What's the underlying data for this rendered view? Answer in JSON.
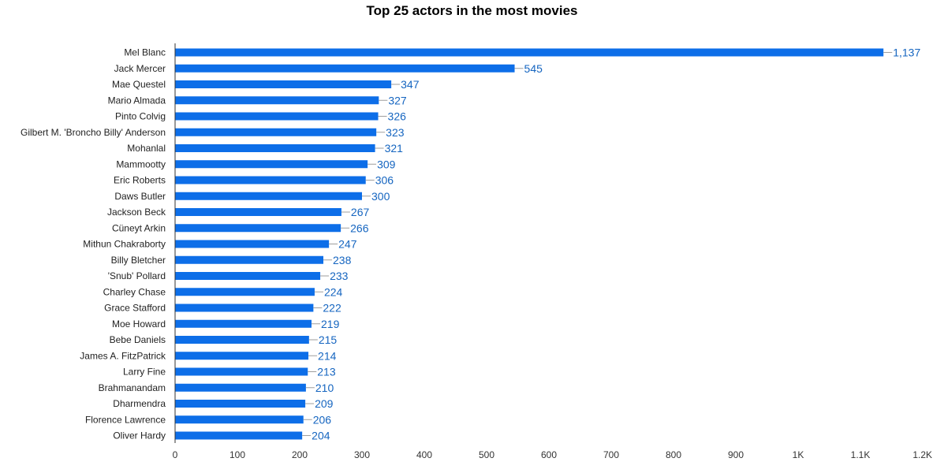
{
  "chart_data": {
    "type": "bar",
    "orientation": "horizontal",
    "title": "Top 25 actors in the most movies",
    "xlabel": "",
    "ylabel": "",
    "xlim": [
      0,
      1200
    ],
    "grid": false,
    "bar_color": "#0d6ee8",
    "label_color": "#1565c0",
    "categories": [
      "Mel Blanc",
      "Jack Mercer",
      "Mae Questel",
      "Mario Almada",
      "Pinto Colvig",
      "Gilbert M. 'Broncho Billy' Anderson",
      "Mohanlal",
      "Mammootty",
      "Eric Roberts",
      "Daws Butler",
      "Jackson Beck",
      "Cüneyt Arkin",
      "Mithun Chakraborty",
      "Billy Bletcher",
      "'Snub' Pollard",
      "Charley Chase",
      "Grace Stafford",
      "Moe Howard",
      "Bebe Daniels",
      "James A. FitzPatrick",
      "Larry Fine",
      "Brahmanandam",
      "Dharmendra",
      "Florence Lawrence",
      "Oliver Hardy"
    ],
    "values": [
      1137,
      545,
      347,
      327,
      326,
      323,
      321,
      309,
      306,
      300,
      267,
      266,
      247,
      238,
      233,
      224,
      222,
      219,
      215,
      214,
      213,
      210,
      209,
      206,
      204
    ],
    "value_labels": [
      "1,137",
      "545",
      "347",
      "327",
      "326",
      "323",
      "321",
      "309",
      "306",
      "300",
      "267",
      "266",
      "247",
      "238",
      "233",
      "224",
      "222",
      "219",
      "215",
      "214",
      "213",
      "210",
      "209",
      "206",
      "204"
    ],
    "ticks": [
      0,
      100,
      200,
      300,
      400,
      500,
      600,
      700,
      800,
      900,
      1000,
      1100,
      1200
    ],
    "tick_labels": [
      "0",
      "100",
      "200",
      "300",
      "400",
      "500",
      "600",
      "700",
      "800",
      "900",
      "1K",
      "1.1K",
      "1.2K"
    ]
  }
}
